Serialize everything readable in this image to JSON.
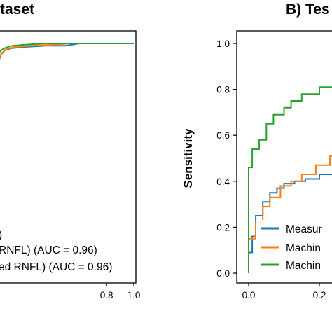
{
  "chart_data": [
    {
      "type": "line",
      "title": "taset",
      "xticks": [
        0.8,
        1.0
      ],
      "xlim": [
        0.0,
        1.0
      ],
      "ylim": [
        0.0,
        1.0
      ],
      "series": [
        {
          "color": "#1f77b4",
          "x": [
            0.0,
            0.01,
            0.02,
            0.05,
            0.1,
            0.2,
            0.35,
            0.5,
            0.6,
            0.7,
            1.0
          ],
          "y": [
            0.9,
            0.93,
            0.95,
            0.97,
            0.98,
            0.985,
            0.99,
            0.99,
            1.0,
            1.0,
            1.0
          ]
        },
        {
          "color": "#ff7f0e",
          "x": [
            0.0,
            0.01,
            0.03,
            0.06,
            0.12,
            0.25,
            0.4,
            0.55,
            0.68,
            1.0
          ],
          "y": [
            0.92,
            0.94,
            0.96,
            0.975,
            0.985,
            0.99,
            0.995,
            1.0,
            1.0,
            1.0
          ]
        },
        {
          "color": "#2ca02c",
          "x": [
            0.0,
            0.02,
            0.05,
            0.1,
            0.2,
            0.35,
            0.5,
            1.0
          ],
          "y": [
            0.95,
            0.97,
            0.98,
            0.99,
            0.995,
            1.0,
            1.0,
            1.0
          ]
        }
      ],
      "legend": [
        {
          "color": "#1f77b4",
          "label": ")"
        },
        {
          "color": "#ff7f0e",
          "label": "RNFL) (AUC = 0.96)"
        },
        {
          "color": "#2ca02c",
          "label": "ed RNFL) (AUC = 0.96)"
        }
      ]
    },
    {
      "type": "line",
      "title": "B) Tes",
      "ylabel": "Sensitivity",
      "yticks": [
        0.0,
        0.2,
        0.4,
        0.6,
        0.8,
        1.0
      ],
      "xticks": [
        0.0,
        0.2
      ],
      "xlim": [
        0.0,
        1.0
      ],
      "ylim": [
        0.0,
        1.0
      ],
      "series": [
        {
          "color": "#1f77b4",
          "x": [
            0.0,
            0.0,
            0.01,
            0.01,
            0.02,
            0.02,
            0.04,
            0.04,
            0.06,
            0.06,
            0.08,
            0.08,
            0.1,
            0.1,
            0.13,
            0.13,
            0.16,
            0.16,
            0.2,
            0.2,
            0.24,
            0.24,
            0.28,
            0.28,
            0.3,
            0.3,
            0.34,
            0.34,
            0.38,
            0.38,
            0.44,
            0.44,
            0.5,
            0.5,
            0.56
          ],
          "y": [
            0.0,
            0.09,
            0.09,
            0.16,
            0.16,
            0.25,
            0.25,
            0.31,
            0.31,
            0.35,
            0.35,
            0.37,
            0.37,
            0.39,
            0.39,
            0.4,
            0.4,
            0.41,
            0.41,
            0.43,
            0.43,
            0.45,
            0.45,
            0.5,
            0.5,
            0.55,
            0.55,
            0.58,
            0.58,
            0.6,
            0.6,
            0.62,
            0.62,
            0.63,
            0.63
          ]
        },
        {
          "color": "#ff7f0e",
          "x": [
            0.0,
            0.0,
            0.02,
            0.02,
            0.04,
            0.04,
            0.06,
            0.06,
            0.09,
            0.09,
            0.12,
            0.12,
            0.15,
            0.15,
            0.19,
            0.19,
            0.23,
            0.23,
            0.27,
            0.27,
            0.3,
            0.3,
            0.34,
            0.34,
            0.4,
            0.4,
            0.48,
            0.48,
            0.56
          ],
          "y": [
            0.0,
            0.15,
            0.15,
            0.22,
            0.22,
            0.29,
            0.29,
            0.33,
            0.33,
            0.38,
            0.38,
            0.4,
            0.4,
            0.43,
            0.43,
            0.47,
            0.47,
            0.51,
            0.51,
            0.55,
            0.55,
            0.58,
            0.58,
            0.6,
            0.6,
            0.62,
            0.62,
            0.66,
            0.66
          ]
        },
        {
          "color": "#2ca02c",
          "x": [
            0.0,
            0.0,
            0.01,
            0.01,
            0.03,
            0.03,
            0.05,
            0.05,
            0.07,
            0.07,
            0.1,
            0.1,
            0.12,
            0.12,
            0.15,
            0.15,
            0.2,
            0.2,
            0.25,
            0.25,
            0.3,
            0.3,
            0.34,
            0.34,
            0.38,
            0.38,
            0.42,
            0.42,
            0.45,
            0.45,
            0.48,
            0.48,
            0.56
          ],
          "y": [
            0.0,
            0.46,
            0.46,
            0.54,
            0.54,
            0.58,
            0.58,
            0.65,
            0.65,
            0.69,
            0.69,
            0.72,
            0.72,
            0.75,
            0.75,
            0.78,
            0.78,
            0.81,
            0.81,
            0.83,
            0.83,
            0.85,
            0.85,
            0.87,
            0.87,
            0.89,
            0.89,
            0.9,
            0.9,
            0.93,
            0.93,
            0.95,
            0.95
          ]
        }
      ],
      "legend": [
        {
          "color": "#1f77b4",
          "label": "Measur"
        },
        {
          "color": "#ff7f0e",
          "label": "Machin"
        },
        {
          "color": "#2ca02c",
          "label": "Machin"
        }
      ]
    }
  ]
}
